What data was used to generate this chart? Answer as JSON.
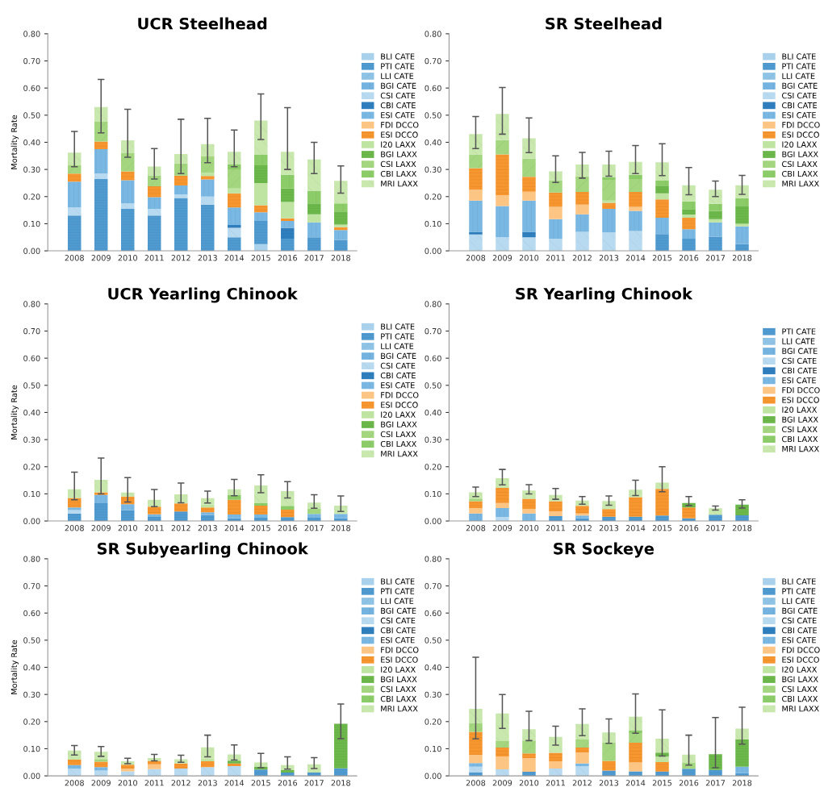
{
  "chart_data": [
    {
      "type": "bar",
      "title": "UCR Steelhead",
      "ylabel": "Mortality Rate",
      "stacked": true,
      "legend": "right",
      "categories": [
        "2008",
        "2009",
        "2010",
        "2011",
        "2012",
        "2013",
        "2014",
        "2015",
        "2016",
        "2017",
        "2018"
      ],
      "ylim": [
        0,
        0.8
      ],
      "yticks": [
        {
          "value": 0,
          "label": "0.00"
        },
        {
          "value": 0.1,
          "label": "0.10"
        },
        {
          "value": 0.2,
          "label": "0.20"
        },
        {
          "value": 0.3,
          "label": "0.30"
        },
        {
          "value": 0.4,
          "label": "0.40"
        },
        {
          "value": 0.5,
          "label": "0.50"
        },
        {
          "value": 0.6,
          "label": "0.60"
        },
        {
          "value": 0.7,
          "label": "0.70"
        },
        {
          "value": 0.8,
          "label": "0.80"
        }
      ],
      "series": [
        {
          "name": "BLI CATE",
          "color": "#a9d1ec",
          "values": [
            0,
            0,
            0,
            0,
            0,
            0,
            0,
            0.025,
            0,
            0,
            0
          ]
        },
        {
          "name": "PTI CATE",
          "color": "#4f9bd1",
          "values": [
            0.13,
            0.265,
            0.155,
            0.13,
            0.195,
            0.17,
            0.05,
            0.085,
            0.045,
            0.05,
            0.04
          ]
        },
        {
          "name": "LLI CATE",
          "color": "#8ec3e6",
          "values": [
            0,
            0,
            0,
            0,
            0,
            0,
            0,
            0,
            0,
            0,
            0
          ]
        },
        {
          "name": "BGI CATE",
          "color": "#74b2df",
          "values": [
            0,
            0,
            0,
            0,
            0,
            0,
            0,
            0,
            0,
            0,
            0
          ]
        },
        {
          "name": "CSI CATE",
          "color": "#b8daf0",
          "values": [
            0.03,
            0.02,
            0.02,
            0.025,
            0.013,
            0.03,
            0.035,
            0,
            0,
            0,
            0
          ]
        },
        {
          "name": "CBI CATE",
          "color": "#2f7fbf",
          "values": [
            0,
            0,
            0,
            0,
            0,
            0,
            0.01,
            0,
            0.04,
            0,
            0
          ]
        },
        {
          "name": "ESI CATE",
          "color": "#7ab8e4",
          "values": [
            0.095,
            0.09,
            0.085,
            0.043,
            0.033,
            0.063,
            0.065,
            0.032,
            0.025,
            0.055,
            0.037
          ]
        },
        {
          "name": "FDI DCCO",
          "color": "#fdc584",
          "values": [
            0,
            0,
            0,
            0,
            0,
            0,
            0,
            0,
            0,
            0,
            0
          ]
        },
        {
          "name": "ESI DCCO",
          "color": "#f7962e",
          "values": [
            0.03,
            0.028,
            0.033,
            0.04,
            0.036,
            0.013,
            0.052,
            0.026,
            0.01,
            0,
            0.01
          ]
        },
        {
          "name": "I20 LAXX",
          "color": "#bfe3a0",
          "values": [
            0,
            0,
            0,
            0,
            0,
            0.012,
            0.018,
            0.082,
            0.06,
            0.03,
            0.01
          ]
        },
        {
          "name": "BGI LAXX",
          "color": "#6cb84a",
          "values": [
            0,
            0,
            0,
            0,
            0,
            0,
            0,
            0.065,
            0.05,
            0.04,
            0.048
          ]
        },
        {
          "name": "CSI LAXX",
          "color": "#a3d67f",
          "values": [
            0.03,
            0.073,
            0.067,
            0.04,
            0.045,
            0.06,
            0.07,
            0,
            0,
            0,
            0
          ]
        },
        {
          "name": "CBI LAXX",
          "color": "#8ccc68",
          "values": [
            0,
            0,
            0,
            0,
            0,
            0,
            0.02,
            0.04,
            0.05,
            0.045,
            0.03
          ]
        },
        {
          "name": "MRI LAXX",
          "color": "#c9e8ae",
          "values": [
            0.047,
            0.054,
            0.047,
            0.033,
            0.035,
            0.045,
            0.045,
            0.125,
            0.085,
            0.117,
            0.083
          ],
          "errors": [
            [
              0.31,
              0.44
            ],
            [
              0.435,
              0.632
            ],
            [
              0.345,
              0.522
            ],
            [
              0.265,
              0.377
            ],
            [
              0.285,
              0.485
            ],
            [
              0.325,
              0.488
            ],
            [
              0.31,
              0.445
            ],
            [
              0.41,
              0.578
            ],
            [
              0.3,
              0.528
            ],
            [
              0.285,
              0.4
            ],
            [
              0.213,
              0.313
            ]
          ]
        }
      ]
    },
    {
      "type": "bar",
      "title": "SR Steelhead",
      "stacked": true,
      "legend": "right",
      "categories": [
        "2008",
        "2009",
        "2010",
        "2011",
        "2012",
        "2013",
        "2014",
        "2015",
        "2016",
        "2017",
        "2018"
      ],
      "ylim": [
        0,
        0.8
      ],
      "yticks": [
        {
          "value": 0,
          "label": "0.00"
        },
        {
          "value": 0.1,
          "label": "0.10"
        },
        {
          "value": 0.2,
          "label": "0.20"
        },
        {
          "value": 0.3,
          "label": "0.30"
        },
        {
          "value": 0.4,
          "label": "0.40"
        },
        {
          "value": 0.5,
          "label": "0.50"
        },
        {
          "value": 0.6,
          "label": "0.60"
        },
        {
          "value": 0.7,
          "label": "0.70"
        },
        {
          "value": 0.8,
          "label": "0.80"
        }
      ],
      "series": [
        {
          "name": "BLI CATE",
          "color": "#a9d1ec",
          "values": [
            0,
            0,
            0,
            0,
            0,
            0,
            0,
            0,
            0,
            0,
            0
          ]
        },
        {
          "name": "PTI CATE",
          "color": "#4f9bd1",
          "values": [
            0,
            0,
            0,
            0,
            0,
            0,
            0,
            0.062,
            0.045,
            0.052,
            0.025
          ]
        },
        {
          "name": "LLI CATE",
          "color": "#8ec3e6",
          "values": [
            0,
            0,
            0,
            0,
            0,
            0,
            0,
            0,
            0,
            0,
            0
          ]
        },
        {
          "name": "BGI CATE",
          "color": "#74b2df",
          "values": [
            0,
            0,
            0,
            0,
            0,
            0,
            0,
            0,
            0,
            0,
            0
          ]
        },
        {
          "name": "CSI CATE",
          "color": "#b8daf0",
          "values": [
            0.06,
            0.05,
            0.05,
            0.045,
            0.07,
            0.068,
            0.073,
            0,
            0,
            0,
            0
          ]
        },
        {
          "name": "CBI CATE",
          "color": "#2f7fbf",
          "values": [
            0.01,
            0,
            0.02,
            0,
            0,
            0,
            0,
            0,
            0,
            0,
            0
          ]
        },
        {
          "name": "ESI CATE",
          "color": "#7ab8e4",
          "values": [
            0.115,
            0.115,
            0.115,
            0.072,
            0.065,
            0.087,
            0.074,
            0.06,
            0.035,
            0.053,
            0.065
          ]
        },
        {
          "name": "FDI DCCO",
          "color": "#fdc584",
          "values": [
            0.04,
            0.04,
            0.033,
            0.045,
            0.035,
            0,
            0.015,
            0,
            0,
            0,
            0
          ]
        },
        {
          "name": "ESI DCCO",
          "color": "#f7962e",
          "values": [
            0.08,
            0.15,
            0.055,
            0.053,
            0.047,
            0.022,
            0.055,
            0.068,
            0.042,
            0,
            0
          ]
        },
        {
          "name": "I20 LAXX",
          "color": "#bfe3a0",
          "values": [
            0,
            0,
            0,
            0,
            0,
            0.008,
            0,
            0.022,
            0.012,
            0.012,
            0.01
          ]
        },
        {
          "name": "BGI LAXX",
          "color": "#6cb84a",
          "values": [
            0,
            0,
            0,
            0,
            0,
            0,
            0,
            0.028,
            0.02,
            0.03,
            0.066
          ]
        },
        {
          "name": "CSI LAXX",
          "color": "#a3d67f",
          "values": [
            0.05,
            0.053,
            0.067,
            0.045,
            0.058,
            0.077,
            0.048,
            0,
            0,
            0,
            0
          ]
        },
        {
          "name": "CBI LAXX",
          "color": "#8ccc68",
          "values": [
            0,
            0,
            0,
            0,
            0,
            0.01,
            0.015,
            0.02,
            0.028,
            0.026,
            0.028
          ]
        },
        {
          "name": "MRI LAXX",
          "color": "#c9e8ae",
          "values": [
            0.075,
            0.097,
            0.075,
            0.033,
            0.043,
            0.046,
            0.048,
            0.066,
            0.06,
            0.052,
            0.048
          ],
          "errors": [
            [
              0.377,
              0.495
            ],
            [
              0.43,
              0.602
            ],
            [
              0.362,
              0.49
            ],
            [
              0.252,
              0.35
            ],
            [
              0.268,
              0.363
            ],
            [
              0.275,
              0.367
            ],
            [
              0.285,
              0.388
            ],
            [
              0.277,
              0.395
            ],
            [
              0.207,
              0.307
            ],
            [
              0.2,
              0.257
            ],
            [
              0.208,
              0.278
            ]
          ]
        }
      ]
    },
    {
      "type": "bar",
      "title": "UCR Yearling Chinook",
      "ylabel": "Mortality Rate",
      "stacked": true,
      "legend": "right",
      "categories": [
        "2008",
        "2009",
        "2010",
        "2011",
        "2012",
        "2013",
        "2014",
        "2015",
        "2016",
        "2017",
        "2018"
      ],
      "ylim": [
        0,
        0.8
      ],
      "yticks": [
        {
          "value": 0,
          "label": "0.00"
        },
        {
          "value": 0.1,
          "label": "0.10"
        },
        {
          "value": 0.2,
          "label": "0.20"
        },
        {
          "value": 0.3,
          "label": "0.30"
        },
        {
          "value": 0.4,
          "label": "0.40"
        },
        {
          "value": 0.5,
          "label": "0.50"
        },
        {
          "value": 0.6,
          "label": "0.60"
        },
        {
          "value": 0.7,
          "label": "0.70"
        },
        {
          "value": 0.8,
          "label": "0.80"
        }
      ],
      "series": [
        {
          "name": "BLI CATE",
          "color": "#a9d1ec",
          "values": [
            0,
            0,
            0,
            0,
            0,
            0,
            0,
            0,
            0,
            0,
            0
          ]
        },
        {
          "name": "PTI CATE",
          "color": "#4f9bd1",
          "values": [
            0.028,
            0.068,
            0.04,
            0.015,
            0.035,
            0.022,
            0.01,
            0.012,
            0.014,
            0.012,
            0.01
          ]
        },
        {
          "name": "LLI CATE",
          "color": "#8ec3e6",
          "values": [
            0,
            0,
            0,
            0,
            0,
            0,
            0,
            0,
            0,
            0,
            0
          ]
        },
        {
          "name": "BGI CATE",
          "color": "#74b2df",
          "values": [
            0,
            0,
            0,
            0,
            0,
            0,
            0,
            0,
            0,
            0,
            0
          ]
        },
        {
          "name": "CSI CATE",
          "color": "#b8daf0",
          "values": [
            0.012,
            0,
            0,
            0,
            0,
            0,
            0,
            0,
            0,
            0,
            0
          ]
        },
        {
          "name": "CBI CATE",
          "color": "#2f7fbf",
          "values": [
            0,
            0,
            0,
            0,
            0,
            0,
            0,
            0,
            0,
            0,
            0
          ]
        },
        {
          "name": "ESI CATE",
          "color": "#7ab8e4",
          "values": [
            0.01,
            0.028,
            0.022,
            0.01,
            0,
            0.01,
            0.014,
            0.012,
            0,
            0.014,
            0.016
          ]
        },
        {
          "name": "FDI DCCO",
          "color": "#fdc584",
          "values": [
            0,
            0,
            0,
            0,
            0,
            0,
            0,
            0,
            0,
            0,
            0
          ]
        },
        {
          "name": "ESI DCCO",
          "color": "#f7962e",
          "values": [
            0.035,
            0.01,
            0.028,
            0.028,
            0.03,
            0.018,
            0.054,
            0.033,
            0.028,
            0,
            0
          ]
        },
        {
          "name": "I20 LAXX",
          "color": "#bfe3a0",
          "values": [
            0,
            0,
            0,
            0,
            0,
            0.01,
            0,
            0,
            0,
            0,
            0
          ]
        },
        {
          "name": "BGI LAXX",
          "color": "#6cb84a",
          "values": [
            0,
            0,
            0,
            0,
            0,
            0,
            0,
            0,
            0,
            0,
            0
          ]
        },
        {
          "name": "CSI LAXX",
          "color": "#a3d67f",
          "values": [
            0,
            0,
            0,
            0,
            0,
            0,
            0,
            0,
            0,
            0.02,
            0
          ]
        },
        {
          "name": "CBI LAXX",
          "color": "#8ccc68",
          "values": [
            0,
            0,
            0,
            0,
            0,
            0,
            0.017,
            0.01,
            0.014,
            0,
            0
          ]
        },
        {
          "name": "MRI LAXX",
          "color": "#c9e8ae",
          "values": [
            0.032,
            0.046,
            0.015,
            0.025,
            0.033,
            0.024,
            0.022,
            0.064,
            0.054,
            0.022,
            0.031
          ],
          "errors": [
            [
              0.078,
              0.18
            ],
            [
              0.1,
              0.232
            ],
            [
              0.07,
              0.16
            ],
            [
              0.053,
              0.116
            ],
            [
              0.067,
              0.14
            ],
            [
              0.066,
              0.11
            ],
            [
              0.093,
              0.153
            ],
            [
              0.104,
              0.17
            ],
            [
              0.085,
              0.145
            ],
            [
              0.047,
              0.097
            ],
            [
              0.035,
              0.092
            ]
          ]
        }
      ]
    },
    {
      "type": "bar",
      "title": "SR Yearling Chinook",
      "stacked": true,
      "legend": "right",
      "categories": [
        "2008",
        "2009",
        "2010",
        "2011",
        "2012",
        "2013",
        "2014",
        "2015",
        "2016",
        "2017",
        "2018"
      ],
      "ylim": [
        0,
        0.8
      ],
      "yticks": [
        {
          "value": 0,
          "label": "0.00"
        },
        {
          "value": 0.1,
          "label": "0.10"
        },
        {
          "value": 0.2,
          "label": "0.20"
        },
        {
          "value": 0.3,
          "label": "0.30"
        },
        {
          "value": 0.4,
          "label": "0.40"
        },
        {
          "value": 0.5,
          "label": "0.50"
        },
        {
          "value": 0.6,
          "label": "0.60"
        },
        {
          "value": 0.7,
          "label": "0.70"
        },
        {
          "value": 0.8,
          "label": "0.80"
        }
      ],
      "series": [
        {
          "name": "PTI CATE",
          "color": "#4f9bd1",
          "values": [
            0,
            0,
            0,
            0.018,
            0.01,
            0.016,
            0.016,
            0.02,
            0.01,
            0.023,
            0.021
          ]
        },
        {
          "name": "LLI CATE",
          "color": "#8ec3e6",
          "values": [
            0,
            0,
            0,
            0,
            0,
            0,
            0,
            0,
            0,
            0,
            0
          ]
        },
        {
          "name": "BGI CATE",
          "color": "#74b2df",
          "values": [
            0.028,
            0,
            0,
            0,
            0,
            0,
            0,
            0,
            0,
            0,
            0
          ]
        },
        {
          "name": "CSI CATE",
          "color": "#b8daf0",
          "values": [
            0,
            0.015,
            0,
            0,
            0,
            0,
            0,
            0,
            0,
            0,
            0
          ]
        },
        {
          "name": "CBI CATE",
          "color": "#2f7fbf",
          "values": [
            0,
            0,
            0,
            0,
            0,
            0,
            0,
            0,
            0,
            0,
            0
          ]
        },
        {
          "name": "ESI CATE",
          "color": "#7ab8e4",
          "values": [
            0,
            0.033,
            0.028,
            0,
            0.01,
            0,
            0,
            0,
            0,
            0,
            0
          ]
        },
        {
          "name": "FDI DCCO",
          "color": "#fdc584",
          "values": [
            0.02,
            0.018,
            0.017,
            0.017,
            0.008,
            0,
            0,
            0,
            0,
            0,
            0
          ]
        },
        {
          "name": "ESI DCCO",
          "color": "#f7962e",
          "values": [
            0.025,
            0.056,
            0.037,
            0.038,
            0.028,
            0.028,
            0.072,
            0.098,
            0.04,
            0,
            0
          ]
        },
        {
          "name": "I20 LAXX",
          "color": "#bfe3a0",
          "values": [
            0,
            0,
            0,
            0,
            0,
            0,
            0,
            0,
            0,
            0,
            0
          ]
        },
        {
          "name": "BGI LAXX",
          "color": "#6cb84a",
          "values": [
            0,
            0,
            0,
            0,
            0,
            0,
            0,
            0,
            0.016,
            0,
            0.039
          ]
        },
        {
          "name": "CSI LAXX",
          "color": "#a3d67f",
          "values": [
            0.01,
            0,
            0,
            0,
            0,
            0,
            0,
            0,
            0,
            0,
            0
          ]
        },
        {
          "name": "CBI LAXX",
          "color": "#8ccc68",
          "values": [
            0,
            0,
            0,
            0,
            0,
            0,
            0,
            0,
            0,
            0,
            0
          ]
        },
        {
          "name": "MRI LAXX",
          "color": "#c9e8ae",
          "values": [
            0.023,
            0.036,
            0.03,
            0.023,
            0.019,
            0.03,
            0.027,
            0.023,
            0,
            0.024,
            0
          ],
          "errors": [
            [
              0.09,
              0.125
            ],
            [
              0.133,
              0.19
            ],
            [
              0.1,
              0.134
            ],
            [
              0.08,
              0.12
            ],
            [
              0.062,
              0.09
            ],
            [
              0.058,
              0.092
            ],
            [
              0.094,
              0.15
            ],
            [
              0.108,
              0.2
            ],
            [
              0.057,
              0.09
            ],
            [
              0.04,
              0.055
            ],
            [
              0.048,
              0.078
            ]
          ]
        }
      ]
    },
    {
      "type": "bar",
      "title": "SR Subyearling Chinook",
      "ylabel": "Mortality Rate",
      "stacked": true,
      "legend": "right",
      "categories": [
        "2008",
        "2009",
        "2010",
        "2011",
        "2012",
        "2013",
        "2014",
        "2015",
        "2016",
        "2017",
        "2018"
      ],
      "ylim": [
        0,
        0.8
      ],
      "yticks": [
        {
          "value": 0,
          "label": "0.00"
        },
        {
          "value": 0.1,
          "label": "0.10"
        },
        {
          "value": 0.2,
          "label": "0.20"
        },
        {
          "value": 0.3,
          "label": "0.30"
        },
        {
          "value": 0.4,
          "label": "0.40"
        },
        {
          "value": 0.5,
          "label": "0.50"
        },
        {
          "value": 0.6,
          "label": "0.60"
        },
        {
          "value": 0.7,
          "label": "0.70"
        },
        {
          "value": 0.8,
          "label": "0.80"
        }
      ],
      "series": [
        {
          "name": "BLI CATE",
          "color": "#a9d1ec",
          "values": [
            0,
            0,
            0,
            0,
            0,
            0,
            0,
            0,
            0,
            0,
            0
          ]
        },
        {
          "name": "PTI CATE",
          "color": "#4f9bd1",
          "values": [
            0,
            0,
            0,
            0,
            0,
            0,
            0,
            0.023,
            0.012,
            0.012,
            0.028
          ]
        },
        {
          "name": "LLI CATE",
          "color": "#8ec3e6",
          "values": [
            0,
            0,
            0,
            0,
            0,
            0,
            0,
            0,
            0,
            0,
            0
          ]
        },
        {
          "name": "BGI CATE",
          "color": "#74b2df",
          "values": [
            0,
            0,
            0,
            0,
            0,
            0,
            0,
            0,
            0,
            0,
            0
          ]
        },
        {
          "name": "CSI CATE",
          "color": "#b8daf0",
          "values": [
            0.026,
            0.02,
            0.017,
            0.025,
            0.027,
            0.032,
            0.036,
            0,
            0,
            0,
            0
          ]
        },
        {
          "name": "CBI CATE",
          "color": "#2f7fbf",
          "values": [
            0,
            0,
            0,
            0,
            0,
            0,
            0,
            0,
            0,
            0,
            0
          ]
        },
        {
          "name": "ESI CATE",
          "color": "#7ab8e4",
          "values": [
            0.014,
            0.012,
            0,
            0,
            0,
            0,
            0,
            0,
            0,
            0,
            0
          ]
        },
        {
          "name": "FDI DCCO",
          "color": "#fdc584",
          "values": [
            0,
            0,
            0.01,
            0.018,
            0,
            0,
            0,
            0,
            0,
            0,
            0
          ]
        },
        {
          "name": "ESI DCCO",
          "color": "#f7962e",
          "values": [
            0.02,
            0.02,
            0.014,
            0.012,
            0.019,
            0.022,
            0.01,
            0,
            0,
            0,
            0
          ]
        },
        {
          "name": "I20 LAXX",
          "color": "#bfe3a0",
          "values": [
            0,
            0,
            0,
            0,
            0,
            0.01,
            0,
            0,
            0,
            0,
            0
          ]
        },
        {
          "name": "BGI LAXX",
          "color": "#6cb84a",
          "values": [
            0,
            0,
            0,
            0,
            0,
            0,
            0.01,
            0.01,
            0.01,
            0,
            0.164
          ]
        },
        {
          "name": "CSI LAXX",
          "color": "#a3d67f",
          "values": [
            0,
            0.01,
            0,
            0,
            0,
            0,
            0,
            0,
            0,
            0,
            0
          ]
        },
        {
          "name": "CBI LAXX",
          "color": "#8ccc68",
          "values": [
            0,
            0,
            0,
            0,
            0,
            0,
            0,
            0,
            0,
            0,
            0
          ]
        },
        {
          "name": "MRI LAXX",
          "color": "#c9e8ae",
          "values": [
            0.033,
            0.027,
            0.013,
            0.011,
            0.015,
            0.041,
            0.023,
            0.016,
            0.018,
            0.031,
            0
          ],
          "errors": [
            [
              0.077,
              0.112
            ],
            [
              0.072,
              0.108
            ],
            [
              0.045,
              0.065
            ],
            [
              0.055,
              0.079
            ],
            [
              0.05,
              0.076
            ],
            [
              0.07,
              0.15
            ],
            [
              0.058,
              0.114
            ],
            [
              0.03,
              0.083
            ],
            [
              0.025,
              0.07
            ],
            [
              0.027,
              0.067
            ],
            [
              0.137,
              0.265
            ]
          ]
        }
      ]
    },
    {
      "type": "bar",
      "title": "SR Sockeye",
      "stacked": true,
      "legend": "right",
      "categories": [
        "2008",
        "2009",
        "2010",
        "2011",
        "2012",
        "2013",
        "2014",
        "2015",
        "2016",
        "2017",
        "2018"
      ],
      "ylim": [
        0,
        0.8
      ],
      "yticks": [
        {
          "value": 0,
          "label": "0.00"
        },
        {
          "value": 0.1,
          "label": "0.10"
        },
        {
          "value": 0.2,
          "label": "0.20"
        },
        {
          "value": 0.3,
          "label": "0.30"
        },
        {
          "value": 0.4,
          "label": "0.40"
        },
        {
          "value": 0.5,
          "label": "0.50"
        },
        {
          "value": 0.6,
          "label": "0.60"
        },
        {
          "value": 0.7,
          "label": "0.70"
        },
        {
          "value": 0.8,
          "label": "0.80"
        }
      ],
      "series": [
        {
          "name": "BLI CATE",
          "color": "#a9d1ec",
          "values": [
            0,
            0,
            0,
            0,
            0,
            0,
            0,
            0,
            0,
            0,
            0
          ]
        },
        {
          "name": "PTI CATE",
          "color": "#4f9bd1",
          "values": [
            0.012,
            0,
            0.015,
            0,
            0,
            0.02,
            0.017,
            0.016,
            0.026,
            0.022,
            0.01
          ]
        },
        {
          "name": "LLI CATE",
          "color": "#8ec3e6",
          "values": [
            0,
            0,
            0,
            0,
            0,
            0,
            0,
            0,
            0,
            0,
            0
          ]
        },
        {
          "name": "BGI CATE",
          "color": "#74b2df",
          "values": [
            0,
            0,
            0,
            0,
            0,
            0,
            0,
            0,
            0,
            0,
            0
          ]
        },
        {
          "name": "CSI CATE",
          "color": "#b8daf0",
          "values": [
            0.022,
            0.024,
            0,
            0.027,
            0.035,
            0,
            0,
            0,
            0,
            0,
            0
          ]
        },
        {
          "name": "CBI CATE",
          "color": "#2f7fbf",
          "values": [
            0,
            0,
            0,
            0,
            0,
            0,
            0,
            0,
            0,
            0,
            0
          ]
        },
        {
          "name": "ESI CATE",
          "color": "#7ab8e4",
          "values": [
            0.013,
            0,
            0,
            0,
            0.011,
            0,
            0,
            0,
            0,
            0,
            0.024
          ]
        },
        {
          "name": "FDI DCCO",
          "color": "#fdc584",
          "values": [
            0.03,
            0.048,
            0.05,
            0.026,
            0.04,
            0,
            0.032,
            0,
            0,
            0,
            0
          ]
        },
        {
          "name": "ESI DCCO",
          "color": "#f7962e",
          "values": [
            0.085,
            0.032,
            0.018,
            0.032,
            0.018,
            0.035,
            0.073,
            0.035,
            0,
            0,
            0
          ]
        },
        {
          "name": "I20 LAXX",
          "color": "#bfe3a0",
          "values": [
            0,
            0,
            0,
            0,
            0,
            0,
            0,
            0.02,
            0,
            0,
            0
          ]
        },
        {
          "name": "BGI LAXX",
          "color": "#6cb84a",
          "values": [
            0,
            0,
            0,
            0,
            0,
            0,
            0,
            0.015,
            0,
            0.058,
            0.1
          ]
        },
        {
          "name": "CSI LAXX",
          "color": "#a3d67f",
          "values": [
            0.033,
            0.024,
            0.047,
            0,
            0.03,
            0.067,
            0.036,
            0,
            0.022,
            0,
            0
          ]
        },
        {
          "name": "CBI LAXX",
          "color": "#8ccc68",
          "values": [
            0,
            0,
            0,
            0,
            0,
            0,
            0.01,
            0,
            0,
            0,
            0
          ]
        },
        {
          "name": "MRI LAXX",
          "color": "#c9e8ae",
          "values": [
            0.052,
            0.102,
            0.042,
            0.059,
            0.057,
            0.038,
            0.05,
            0.051,
            0.03,
            0,
            0.04
          ],
          "errors": [
            [
              0.136,
              0.437
            ],
            [
              0.175,
              0.3
            ],
            [
              0.13,
              0.238
            ],
            [
              0.113,
              0.183
            ],
            [
              0.148,
              0.247
            ],
            [
              0.12,
              0.21
            ],
            [
              0.157,
              0.302
            ],
            [
              0.073,
              0.243
            ],
            [
              0.04,
              0.15
            ],
            [
              0.03,
              0.215
            ],
            [
              0.117,
              0.253
            ]
          ]
        }
      ]
    }
  ]
}
